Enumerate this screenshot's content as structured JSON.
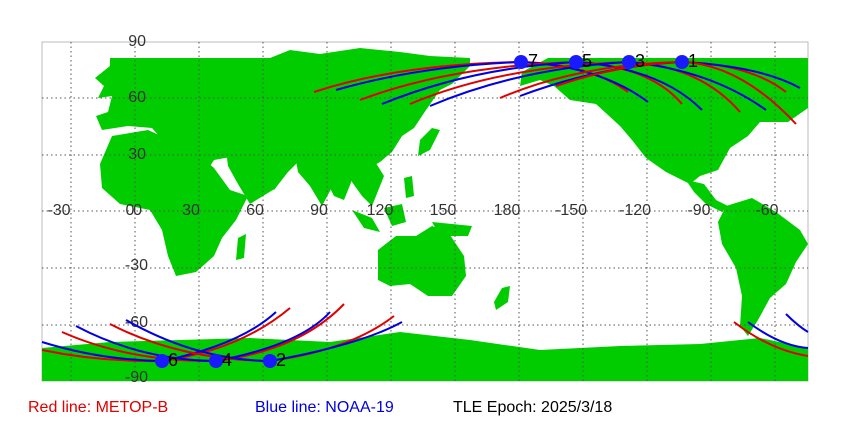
{
  "map": {
    "latitude_labels": [
      "90",
      "60",
      "30",
      "0",
      "-30",
      "-60",
      "-90"
    ],
    "longitude_labels": [
      "-30",
      "0",
      "30",
      "60",
      "90",
      "120",
      "150",
      "180",
      "-150",
      "-120",
      "-90",
      "-60"
    ],
    "colors": {
      "land": "#00cc00",
      "ocean": "#ffffff",
      "grid": "#555555",
      "metop_track": "#e00000",
      "noaa_track": "#0000e0",
      "satellite_marker": "#1a1aff"
    },
    "north_markers": [
      "7",
      "5",
      "3",
      "1"
    ],
    "south_markers": [
      "6",
      "4",
      "2"
    ]
  },
  "legend": {
    "red_line": "Red line: METOP-B",
    "blue_line": "Blue line: NOAA-19",
    "tle_epoch": "TLE Epoch: 2025/3/18"
  }
}
